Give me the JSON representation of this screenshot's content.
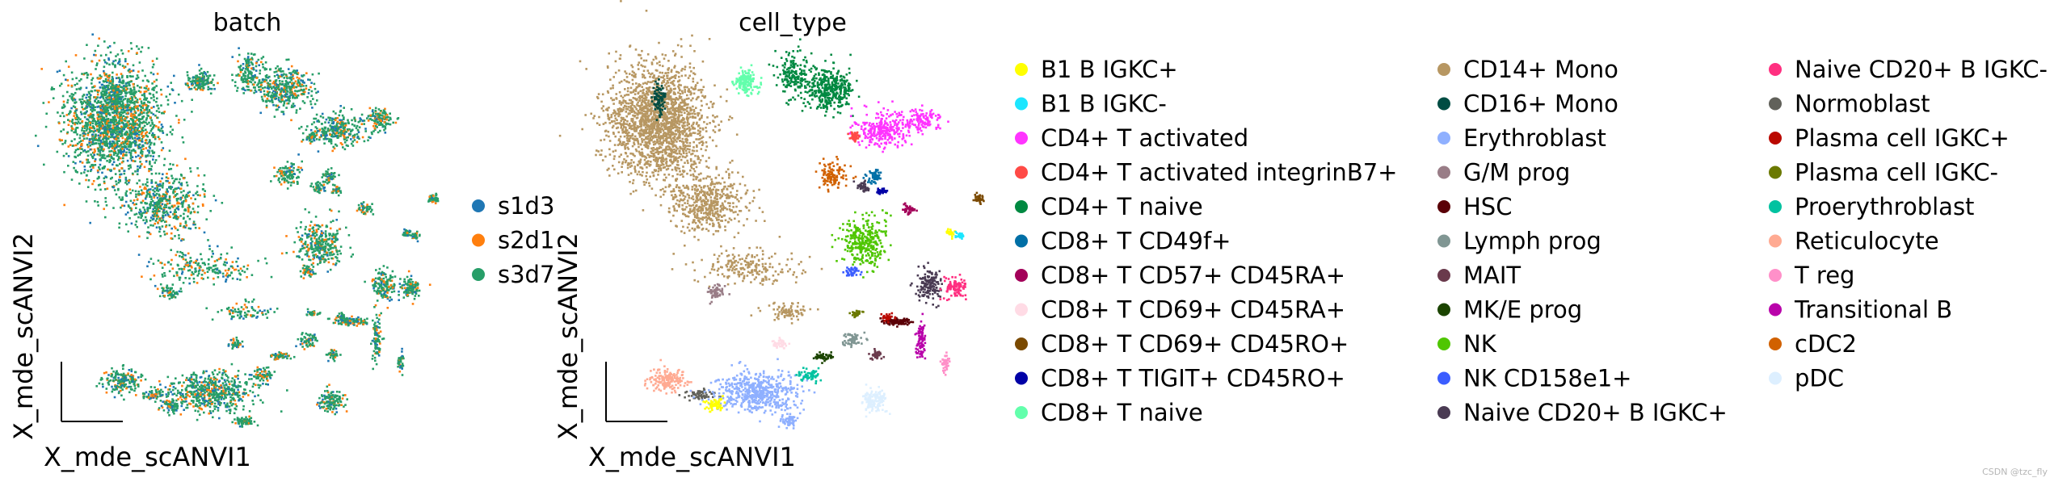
{
  "chart_data": [
    {
      "type": "scatter",
      "title": "batch",
      "xlabel": "X_mde_scANVI1",
      "ylabel": "X_mde_scANVI2",
      "legend_position": "right",
      "series": [
        {
          "name": "s1d3",
          "color": "#1f77b4"
        },
        {
          "name": "s2d1",
          "color": "#ff7f0e"
        },
        {
          "name": "s3d7",
          "color": "#279e68"
        }
      ]
    },
    {
      "type": "scatter",
      "title": "cell_type",
      "xlabel": "X_mde_scANVI1",
      "ylabel": "X_mde_scANVI2",
      "legend_position": "right",
      "series": [
        {
          "name": "B1 B IGKC+",
          "color": "#ffff00"
        },
        {
          "name": "B1 B IGKC-",
          "color": "#1ce6ff"
        },
        {
          "name": "CD4+ T activated",
          "color": "#ff34ff"
        },
        {
          "name": "CD4+ T activated integrinB7+",
          "color": "#ff4a46"
        },
        {
          "name": "CD4+ T naive",
          "color": "#008941"
        },
        {
          "name": "CD8+ T CD49f+",
          "color": "#006fa6"
        },
        {
          "name": "CD8+ T CD57+ CD45RA+",
          "color": "#a30059"
        },
        {
          "name": "CD8+ T CD69+ CD45RA+",
          "color": "#ffdbe5"
        },
        {
          "name": "CD8+ T CD69+ CD45RO+",
          "color": "#7a4900"
        },
        {
          "name": "CD8+ T TIGIT+ CD45RO+",
          "color": "#0000a6"
        },
        {
          "name": "CD8+ T naive",
          "color": "#63ffac"
        },
        {
          "name": "CD14+ Mono",
          "color": "#b79762"
        },
        {
          "name": "CD16+ Mono",
          "color": "#004d43"
        },
        {
          "name": "Erythroblast",
          "color": "#8fb0ff"
        },
        {
          "name": "G/M prog",
          "color": "#997d87"
        },
        {
          "name": "HSC",
          "color": "#5a0007"
        },
        {
          "name": "Lymph prog",
          "color": "#809693"
        },
        {
          "name": "MAIT",
          "color": "#6a3a4c"
        },
        {
          "name": "MK/E prog",
          "color": "#1b4400"
        },
        {
          "name": "NK",
          "color": "#4fc601"
        },
        {
          "name": "NK CD158e1+",
          "color": "#3b5dff"
        },
        {
          "name": "Naive CD20+ B IGKC+",
          "color": "#4a3b53"
        },
        {
          "name": "Naive CD20+ B IGKC-",
          "color": "#ff2f80"
        },
        {
          "name": "Normoblast",
          "color": "#61615a"
        },
        {
          "name": "Plasma cell IGKC+",
          "color": "#ba0900"
        },
        {
          "name": "Plasma cell IGKC-",
          "color": "#6b7900"
        },
        {
          "name": "Proerythroblast",
          "color": "#00c2a0"
        },
        {
          "name": "Reticulocyte",
          "color": "#ffaa92"
        },
        {
          "name": "T reg",
          "color": "#ff90c9"
        },
        {
          "name": "Transitional B",
          "color": "#b903aa"
        },
        {
          "name": "cDC2",
          "color": "#d16100"
        },
        {
          "name": "pDC",
          "color": "#ddefff"
        }
      ]
    }
  ],
  "watermark": "CSDN @tzc_fly"
}
